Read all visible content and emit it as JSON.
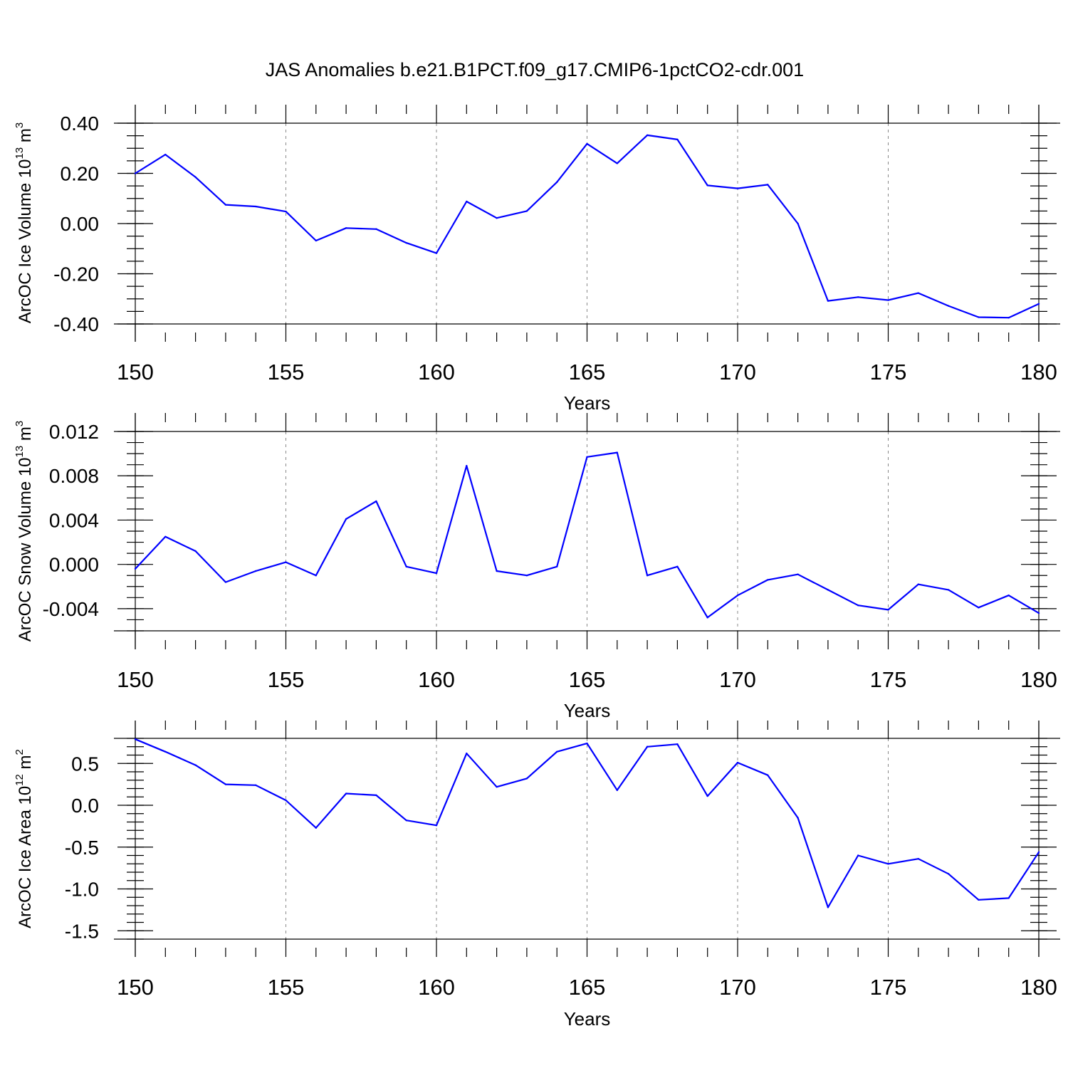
{
  "title": "JAS Anomalies b.e21.B1PCT.f09_g17.CMIP6-1pctCO2-cdr.001",
  "chart_data": [
    {
      "type": "line",
      "xlabel": "Years",
      "ylabel": {
        "main": "ArcOC Ice Volume 10",
        "exp": "13",
        "unit": "m",
        "unit_exp": "3"
      },
      "xlim": [
        150,
        180
      ],
      "ylim": [
        -0.4,
        0.4
      ],
      "xticks": [
        "150",
        "155",
        "160",
        "165",
        "170",
        "175",
        "180"
      ],
      "yticks": [
        {
          "value": 0.4,
          "label": "0.40"
        },
        {
          "value": 0.2,
          "label": "0.20"
        },
        {
          "value": 0.0,
          "label": "0.00"
        },
        {
          "value": -0.2,
          "label": "-0.20"
        },
        {
          "value": -0.4,
          "label": "-0.40"
        }
      ],
      "grid": "vertical dashed at major x ticks",
      "color": "#0000ff",
      "x": [
        150,
        151,
        152,
        153,
        154,
        155,
        156,
        157,
        158,
        159,
        160,
        161,
        162,
        163,
        164,
        165,
        166,
        167,
        168,
        169,
        170,
        171,
        172,
        173,
        174,
        175,
        176,
        177,
        178,
        179,
        180
      ],
      "values": [
        0.2,
        0.275,
        0.185,
        0.075,
        0.068,
        0.048,
        -0.068,
        -0.018,
        -0.022,
        -0.077,
        -0.118,
        0.088,
        0.022,
        0.05,
        0.165,
        0.318,
        0.24,
        0.352,
        0.335,
        0.152,
        0.14,
        0.155,
        0.0,
        -0.308,
        -0.293,
        -0.305,
        -0.277,
        -0.328,
        -0.373,
        -0.375,
        -0.32
      ]
    },
    {
      "type": "line",
      "xlabel": "Years",
      "ylabel": {
        "main": "ArcOC Snow Volume 10",
        "exp": "13",
        "unit": "m",
        "unit_exp": "3"
      },
      "xlim": [
        150,
        180
      ],
      "ylim": [
        -0.006,
        0.012
      ],
      "xticks": [
        "150",
        "155",
        "160",
        "165",
        "170",
        "175",
        "180"
      ],
      "yticks": [
        {
          "value": 0.012,
          "label": "0.012"
        },
        {
          "value": 0.008,
          "label": "0.008"
        },
        {
          "value": 0.004,
          "label": "0.004"
        },
        {
          "value": 0.0,
          "label": "0.000"
        },
        {
          "value": -0.004,
          "label": "-0.004"
        }
      ],
      "grid": "vertical dashed at major x ticks",
      "color": "#0000ff",
      "x": [
        150,
        151,
        152,
        153,
        154,
        155,
        156,
        157,
        158,
        159,
        160,
        161,
        162,
        163,
        164,
        165,
        166,
        167,
        168,
        169,
        170,
        171,
        172,
        173,
        174,
        175,
        176,
        177,
        178,
        179,
        180
      ],
      "values": [
        -0.0004,
        0.0025,
        0.0012,
        -0.0016,
        -0.0006,
        0.0002,
        -0.001,
        0.0041,
        0.0057,
        -0.0002,
        -0.0008,
        0.0089,
        -0.0006,
        -0.001,
        -0.0002,
        0.0097,
        0.0101,
        -0.001,
        -0.0002,
        -0.0048,
        -0.0028,
        -0.0014,
        -0.0009,
        -0.0023,
        -0.0037,
        -0.0041,
        -0.0018,
        -0.0023,
        -0.0039,
        -0.0028,
        -0.0044
      ]
    },
    {
      "type": "line",
      "xlabel": "Years",
      "ylabel": {
        "main": "ArcOC Ice Area 10",
        "exp": "12",
        "unit": "m",
        "unit_exp": "2"
      },
      "xlim": [
        150,
        180
      ],
      "ylim": [
        -1.6,
        0.8
      ],
      "xticks": [
        "150",
        "155",
        "160",
        "165",
        "170",
        "175",
        "180"
      ],
      "yticks": [
        {
          "value": 0.5,
          "label": "0.5"
        },
        {
          "value": 0.0,
          "label": "0.0"
        },
        {
          "value": -0.5,
          "label": "-0.5"
        },
        {
          "value": -1.0,
          "label": "-1.0"
        },
        {
          "value": -1.5,
          "label": "-1.5"
        }
      ],
      "grid": "vertical dashed at major x ticks",
      "color": "#0000ff",
      "x": [
        150,
        151,
        152,
        153,
        154,
        155,
        156,
        157,
        158,
        159,
        160,
        161,
        162,
        163,
        164,
        165,
        166,
        167,
        168,
        169,
        170,
        171,
        172,
        173,
        174,
        175,
        176,
        177,
        178,
        179,
        180
      ],
      "values": [
        0.79,
        0.64,
        0.48,
        0.25,
        0.24,
        0.06,
        -0.27,
        0.14,
        0.12,
        -0.18,
        -0.24,
        0.62,
        0.22,
        0.32,
        0.64,
        0.74,
        0.18,
        0.7,
        0.73,
        0.11,
        0.51,
        0.36,
        -0.15,
        -1.22,
        -0.6,
        -0.7,
        -0.64,
        -0.82,
        -1.13,
        -1.11,
        -0.56
      ]
    }
  ]
}
